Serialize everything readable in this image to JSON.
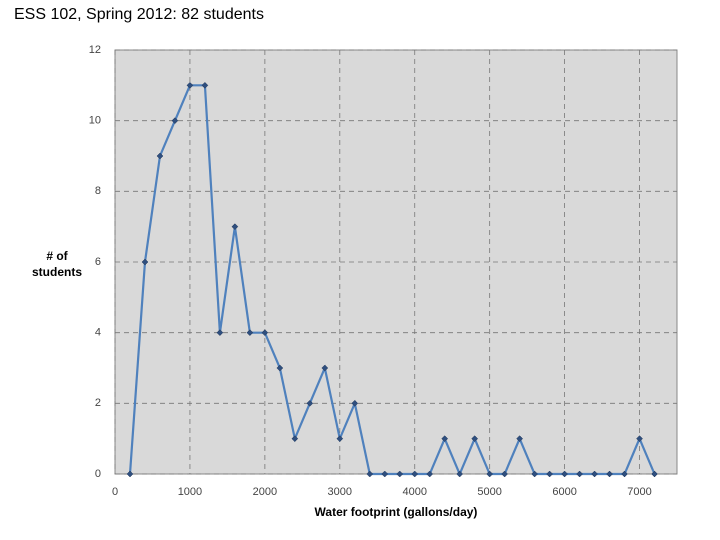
{
  "chart_data": {
    "type": "line",
    "title": "ESS 102, Spring 2012: 82 students",
    "x_label": "Water footprint (gallons/day)",
    "y_label": "# of students",
    "x": [
      200,
      400,
      600,
      800,
      1000,
      1200,
      1400,
      1600,
      1800,
      2000,
      2200,
      2400,
      2600,
      2800,
      3000,
      3200,
      3400,
      3600,
      3800,
      4000,
      4200,
      4400,
      4600,
      4800,
      5000,
      5200,
      5400,
      5600,
      5800,
      6000,
      6200,
      6400,
      6600,
      6800,
      7000,
      7200
    ],
    "series": [
      {
        "name": "students",
        "color": "#4f81bd",
        "values": [
          0,
          6,
          9,
          10,
          11,
          11,
          4,
          7,
          4,
          4,
          3,
          1,
          2,
          3,
          1,
          2,
          0,
          0,
          0,
          0,
          0,
          1,
          0,
          1,
          0,
          0,
          1,
          0,
          0,
          0,
          0,
          0,
          0,
          0,
          1,
          0
        ]
      }
    ],
    "xlim": [
      0,
      7500
    ],
    "ylim": [
      0,
      12
    ],
    "xticks": [
      0,
      1000,
      2000,
      3000,
      4000,
      5000,
      6000,
      7000
    ],
    "yticks": [
      0,
      2,
      4,
      6,
      8,
      10,
      12
    ],
    "grid": true
  }
}
